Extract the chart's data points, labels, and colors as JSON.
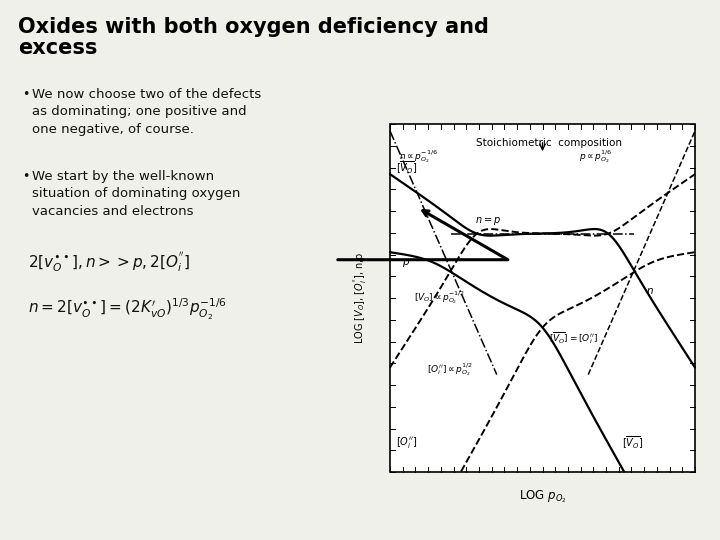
{
  "title_line1": "Oxides with both oxygen deficiency and",
  "title_line2": "excess",
  "title_fontsize": 15,
  "title_color": "#000000",
  "bg_color": "#f0f0ea",
  "bullet1": "We now choose two of the defects\nas dominating; one positive and\none negative, of course.",
  "bullet2": "We start by the well-known\nsituation of dominating oxygen\nvacancies and electrons",
  "eq1": "$2[v_O^{\\bullet\\bullet}], n >> p, 2[O_i^{''}]$",
  "eq2": "$n = 2[v_O^{\\bullet\\bullet}] = (2K_{vO}^{\\prime})^{1/3} p_{O_2}^{-1/6}$",
  "graph_title": "Stoichiometric  composition",
  "xlabel": "LOG $p_{O_2}$",
  "ylabel": "LOG $[V_O]$, $[O_i^{\\'\\'}]$, n,p",
  "graph_bg": "#ffffff"
}
